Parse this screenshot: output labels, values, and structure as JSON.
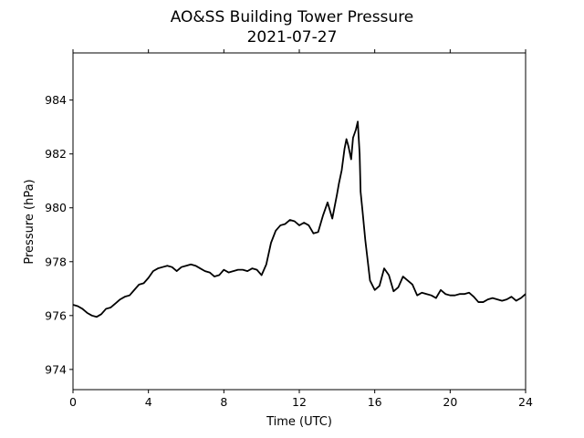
{
  "chart_data": {
    "type": "line",
    "title": "AO&SS Building Tower Pressure",
    "subtitle": "2021-07-27",
    "xlabel": "Time (UTC)",
    "ylabel": "Pressure (hPa)",
    "xlim": [
      0,
      24
    ],
    "ylim": [
      973.25,
      985.75
    ],
    "xticks": [
      0,
      4,
      8,
      12,
      16,
      20,
      24
    ],
    "yticks": [
      974,
      976,
      978,
      980,
      982,
      984
    ],
    "grid": false,
    "line_color": "#000000",
    "series": [
      {
        "x": [
          0,
          0.25,
          0.5,
          0.75,
          1.0,
          1.25,
          1.5,
          1.75,
          2.0,
          2.25,
          2.5,
          2.75,
          3.0,
          3.25,
          3.5,
          3.75,
          4.0,
          4.25,
          4.5,
          4.75,
          5.0,
          5.25,
          5.5,
          5.75,
          6.0,
          6.25,
          6.5,
          6.75,
          7.0,
          7.25,
          7.5,
          7.75,
          8.0,
          8.25,
          8.5,
          8.75,
          9.0,
          9.25,
          9.5,
          9.75,
          10.0,
          10.25,
          10.5,
          10.75,
          11.0,
          11.25,
          11.5,
          11.75,
          12.0,
          12.25,
          12.5,
          12.75,
          13.0,
          13.25,
          13.5,
          13.75,
          14.0,
          14.1,
          14.25,
          14.4,
          14.5,
          14.6,
          14.75,
          14.85,
          15.0,
          15.1,
          15.2,
          15.25,
          15.35,
          15.5,
          15.6,
          15.75,
          16.0,
          16.25,
          16.5,
          16.75,
          17.0,
          17.25,
          17.5,
          17.75,
          18.0,
          18.25,
          18.5,
          18.75,
          19.0,
          19.25,
          19.5,
          19.75,
          20.0,
          20.25,
          20.5,
          20.75,
          21.0,
          21.25,
          21.5,
          21.75,
          22.0,
          22.25,
          22.5,
          22.75,
          23.0,
          23.25,
          23.5,
          23.75,
          24.0
        ],
        "y": [
          976.4,
          976.35,
          976.25,
          976.1,
          976.0,
          975.95,
          976.05,
          976.25,
          976.3,
          976.45,
          976.6,
          976.7,
          976.75,
          976.95,
          977.15,
          977.2,
          977.4,
          977.65,
          977.75,
          977.8,
          977.85,
          977.8,
          977.65,
          977.8,
          977.85,
          977.9,
          977.85,
          977.75,
          977.65,
          977.6,
          977.45,
          977.5,
          977.7,
          977.6,
          977.65,
          977.7,
          977.7,
          977.65,
          977.75,
          977.7,
          977.5,
          977.9,
          978.7,
          979.15,
          979.35,
          979.4,
          979.55,
          979.5,
          979.35,
          979.45,
          979.35,
          979.05,
          979.1,
          979.7,
          980.2,
          979.6,
          980.5,
          980.9,
          981.4,
          982.2,
          982.55,
          982.3,
          981.8,
          982.6,
          982.9,
          983.2,
          982.0,
          980.6,
          979.9,
          978.8,
          978.2,
          977.3,
          976.95,
          977.1,
          977.75,
          977.5,
          976.9,
          977.05,
          977.45,
          977.3,
          977.15,
          976.75,
          976.85,
          976.8,
          976.75,
          976.65,
          976.95,
          976.8,
          976.75,
          976.75,
          976.8,
          976.8,
          976.85,
          976.7,
          976.5,
          976.5,
          976.6,
          976.65,
          976.6,
          976.55,
          976.6,
          976.7,
          976.55,
          976.65,
          976.8
        ]
      }
    ]
  }
}
